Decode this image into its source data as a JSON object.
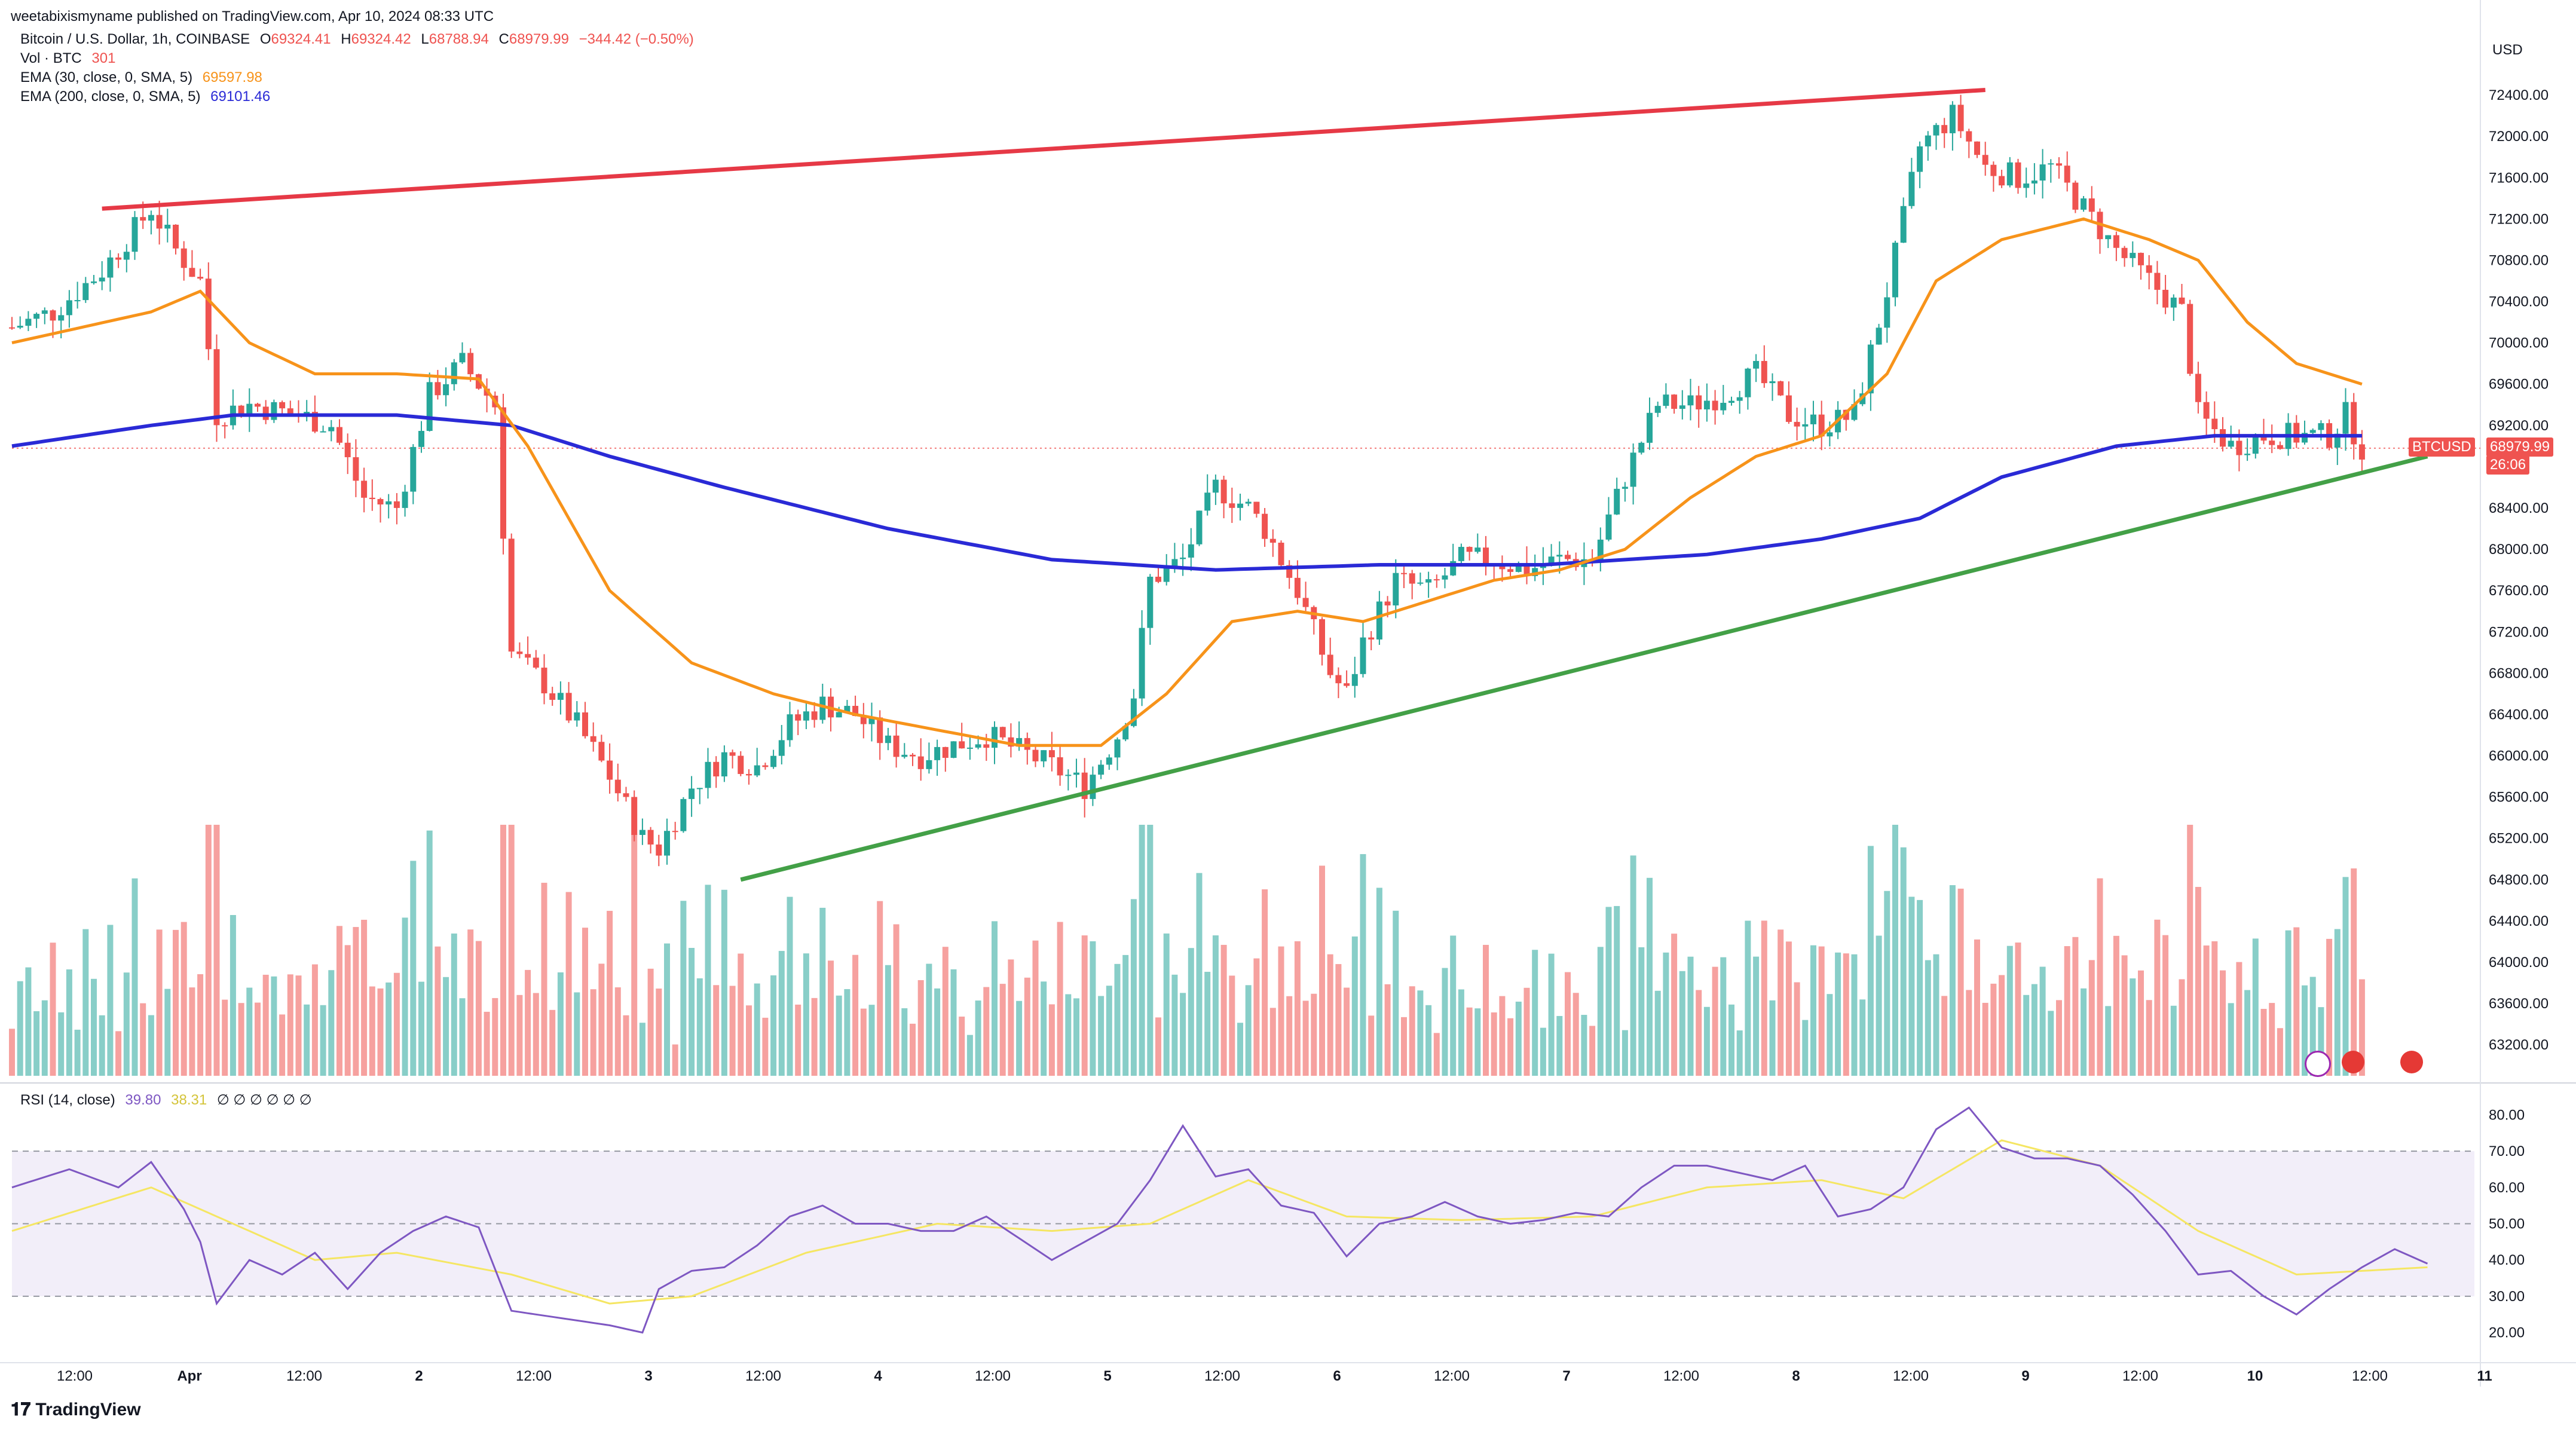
{
  "header": {
    "published_by": "weetabixismyname published on TradingView.com, Apr 10, 2024 08:33 UTC"
  },
  "legend": {
    "symbol": "Bitcoin / U.S. Dollar, 1h, COINBASE",
    "o_label": "O",
    "o_value": "69324.41",
    "h_label": "H",
    "h_value": "69324.42",
    "l_label": "L",
    "l_value": "68788.94",
    "c_label": "C",
    "c_value": "68979.99",
    "change": "−344.42 (−0.50%)",
    "vol_label": "Vol · BTC",
    "vol_value": "301",
    "ema30_label": "EMA (30, close, 0, SMA, 5)",
    "ema30_value": "69597.98",
    "ema200_label": "EMA (200, close, 0, SMA, 5)",
    "ema200_value": "69101.46",
    "rsi_label": "RSI (14, close)",
    "rsi_value": "39.80",
    "rsi_ma_value": "38.31",
    "rsi_extra": "∅ ∅ ∅ ∅ ∅ ∅"
  },
  "price_axis": {
    "currency": "USD",
    "ticks": [
      "72400.00",
      "72000.00",
      "71600.00",
      "71200.00",
      "70800.00",
      "70400.00",
      "70000.00",
      "69600.00",
      "69200.00",
      "68400.00",
      "68000.00",
      "67600.00",
      "67200.00",
      "66800.00",
      "66400.00",
      "66000.00",
      "65600.00",
      "65200.00",
      "64800.00",
      "64400.00",
      "64000.00",
      "63600.00",
      "63200.00"
    ],
    "tag_symbol": "BTCUSD",
    "tag_price": "68979.99",
    "tag_countdown": "26:06"
  },
  "rsi_axis": {
    "ticks": [
      "80.00",
      "70.00",
      "60.00",
      "50.00",
      "40.00",
      "30.00",
      "20.00"
    ]
  },
  "time_axis": {
    "labels": [
      "12:00",
      "Apr",
      "12:00",
      "2",
      "12:00",
      "3",
      "12:00",
      "4",
      "12:00",
      "5",
      "12:00",
      "6",
      "12:00",
      "7",
      "12:00",
      "8",
      "12:00",
      "9",
      "12:00",
      "10",
      "12:00",
      "11"
    ]
  },
  "colors": {
    "up": "#26a69a",
    "down": "#ef5350",
    "ema30": "#f7931a",
    "ema200": "#2a2ad6",
    "resistance": "#e63946",
    "support": "#43a047",
    "rsi_line": "#7e57c2",
    "rsi_ma": "#f5e663"
  },
  "footer": {
    "brand": "TradingView"
  },
  "chart_data": {
    "type": "candlestick",
    "symbol": "BTCUSD",
    "interval": "1h",
    "ylim": [
      62900,
      72800
    ],
    "x_range_hours": [
      -17,
      219
    ],
    "ohlc_keypoints": [
      [
        -17,
        70150
      ],
      [
        -12,
        70300
      ],
      [
        -6,
        70700
      ],
      [
        0,
        71300
      ],
      [
        3,
        70900
      ],
      [
        6,
        70600
      ],
      [
        8,
        69300
      ],
      [
        12,
        69400
      ],
      [
        18,
        69300
      ],
      [
        22,
        69200
      ],
      [
        26,
        68500
      ],
      [
        30,
        68400
      ],
      [
        34,
        69500
      ],
      [
        38,
        69800
      ],
      [
        42,
        69400
      ],
      [
        44,
        67000
      ],
      [
        48,
        66700
      ],
      [
        52,
        66300
      ],
      [
        56,
        65800
      ],
      [
        60,
        65200
      ],
      [
        62,
        65100
      ],
      [
        66,
        65700
      ],
      [
        70,
        66000
      ],
      [
        74,
        65900
      ],
      [
        78,
        66300
      ],
      [
        82,
        66500
      ],
      [
        86,
        66400
      ],
      [
        90,
        66100
      ],
      [
        94,
        66000
      ],
      [
        98,
        66100
      ],
      [
        102,
        66200
      ],
      [
        106,
        66050
      ],
      [
        110,
        65900
      ],
      [
        114,
        65700
      ],
      [
        118,
        66200
      ],
      [
        120,
        66600
      ],
      [
        122,
        67700
      ],
      [
        126,
        67900
      ],
      [
        130,
        68600
      ],
      [
        134,
        68400
      ],
      [
        136,
        68200
      ],
      [
        140,
        67600
      ],
      [
        144,
        66800
      ],
      [
        146,
        66600
      ],
      [
        148,
        67100
      ],
      [
        152,
        67700
      ],
      [
        156,
        67600
      ],
      [
        160,
        67900
      ],
      [
        164,
        67900
      ],
      [
        168,
        67800
      ],
      [
        172,
        67900
      ],
      [
        176,
        67900
      ],
      [
        180,
        68700
      ],
      [
        184,
        69400
      ],
      [
        188,
        69400
      ],
      [
        192,
        69500
      ],
      [
        196,
        69700
      ],
      [
        200,
        69300
      ],
      [
        204,
        69200
      ],
      [
        208,
        69300
      ],
      [
        212,
        70500
      ],
      [
        216,
        71900
      ],
      [
        220,
        72200
      ],
      [
        224,
        71700
      ],
      [
        228,
        71600
      ],
      [
        232,
        71700
      ],
      [
        236,
        71300
      ],
      [
        240,
        70900
      ],
      [
        244,
        70600
      ],
      [
        248,
        70300
      ],
      [
        250,
        69300
      ],
      [
        254,
        69000
      ],
      [
        258,
        69100
      ],
      [
        262,
        69100
      ],
      [
        266,
        69100
      ],
      [
        268,
        69300
      ],
      [
        270,
        68980
      ]
    ],
    "ema30_keypoints": [
      [
        -17,
        70000
      ],
      [
        0,
        70300
      ],
      [
        6,
        70500
      ],
      [
        12,
        70000
      ],
      [
        20,
        69700
      ],
      [
        30,
        69700
      ],
      [
        40,
        69650
      ],
      [
        46,
        69000
      ],
      [
        56,
        67600
      ],
      [
        66,
        66900
      ],
      [
        76,
        66600
      ],
      [
        86,
        66400
      ],
      [
        96,
        66250
      ],
      [
        106,
        66100
      ],
      [
        116,
        66100
      ],
      [
        124,
        66600
      ],
      [
        132,
        67300
      ],
      [
        140,
        67400
      ],
      [
        148,
        67300
      ],
      [
        156,
        67500
      ],
      [
        164,
        67700
      ],
      [
        172,
        67800
      ],
      [
        180,
        68000
      ],
      [
        188,
        68500
      ],
      [
        196,
        68900
      ],
      [
        204,
        69100
      ],
      [
        212,
        69700
      ],
      [
        218,
        70600
      ],
      [
        226,
        71000
      ],
      [
        236,
        71200
      ],
      [
        244,
        71000
      ],
      [
        250,
        70800
      ],
      [
        256,
        70200
      ],
      [
        262,
        69800
      ],
      [
        270,
        69600
      ]
    ],
    "ema200_keypoints": [
      [
        -17,
        69000
      ],
      [
        0,
        69200
      ],
      [
        10,
        69300
      ],
      [
        30,
        69300
      ],
      [
        44,
        69200
      ],
      [
        56,
        68900
      ],
      [
        70,
        68600
      ],
      [
        90,
        68200
      ],
      [
        110,
        67900
      ],
      [
        130,
        67800
      ],
      [
        150,
        67850
      ],
      [
        170,
        67850
      ],
      [
        190,
        67950
      ],
      [
        204,
        68100
      ],
      [
        216,
        68300
      ],
      [
        226,
        68700
      ],
      [
        240,
        69000
      ],
      [
        252,
        69100
      ],
      [
        270,
        69100
      ]
    ],
    "annotations": [
      {
        "type": "trendline",
        "name": "resistance",
        "from": [
          -6,
          71300
        ],
        "to": [
          224,
          72450
        ]
      },
      {
        "type": "trendline",
        "name": "support",
        "from": [
          72,
          64800
        ],
        "to": [
          278,
          68900
        ]
      }
    ],
    "volume_range": [
      0,
      2400
    ],
    "rsi": {
      "ylim": [
        15,
        85
      ],
      "overbought": 70,
      "middle": 50,
      "oversold": 30,
      "keypoints": [
        [
          -17,
          60
        ],
        [
          -10,
          65
        ],
        [
          -4,
          60
        ],
        [
          0,
          67
        ],
        [
          4,
          54
        ],
        [
          6,
          45
        ],
        [
          8,
          28
        ],
        [
          12,
          40
        ],
        [
          16,
          36
        ],
        [
          20,
          42
        ],
        [
          24,
          32
        ],
        [
          28,
          42
        ],
        [
          32,
          48
        ],
        [
          36,
          52
        ],
        [
          40,
          49
        ],
        [
          44,
          26
        ],
        [
          50,
          24
        ],
        [
          56,
          22
        ],
        [
          60,
          20
        ],
        [
          62,
          32
        ],
        [
          66,
          37
        ],
        [
          70,
          38
        ],
        [
          74,
          44
        ],
        [
          78,
          52
        ],
        [
          82,
          55
        ],
        [
          86,
          50
        ],
        [
          90,
          50
        ],
        [
          94,
          48
        ],
        [
          98,
          48
        ],
        [
          102,
          52
        ],
        [
          106,
          46
        ],
        [
          110,
          40
        ],
        [
          114,
          45
        ],
        [
          118,
          50
        ],
        [
          122,
          62
        ],
        [
          126,
          77
        ],
        [
          130,
          63
        ],
        [
          134,
          65
        ],
        [
          138,
          55
        ],
        [
          142,
          53
        ],
        [
          146,
          41
        ],
        [
          150,
          50
        ],
        [
          154,
          52
        ],
        [
          158,
          56
        ],
        [
          162,
          52
        ],
        [
          166,
          50
        ],
        [
          170,
          51
        ],
        [
          174,
          53
        ],
        [
          178,
          52
        ],
        [
          182,
          60
        ],
        [
          186,
          66
        ],
        [
          190,
          66
        ],
        [
          194,
          64
        ],
        [
          198,
          62
        ],
        [
          202,
          66
        ],
        [
          206,
          52
        ],
        [
          210,
          54
        ],
        [
          214,
          60
        ],
        [
          218,
          76
        ],
        [
          222,
          82
        ],
        [
          226,
          71
        ],
        [
          230,
          68
        ],
        [
          234,
          68
        ],
        [
          238,
          66
        ],
        [
          242,
          58
        ],
        [
          246,
          48
        ],
        [
          250,
          36
        ],
        [
          254,
          37
        ],
        [
          258,
          30
        ],
        [
          262,
          25
        ],
        [
          266,
          32
        ],
        [
          270,
          38
        ],
        [
          274,
          43
        ],
        [
          278,
          39
        ]
      ],
      "ma_keypoints": [
        [
          -17,
          48
        ],
        [
          0,
          60
        ],
        [
          8,
          52
        ],
        [
          20,
          40
        ],
        [
          30,
          42
        ],
        [
          44,
          36
        ],
        [
          56,
          28
        ],
        [
          66,
          30
        ],
        [
          80,
          42
        ],
        [
          96,
          50
        ],
        [
          110,
          48
        ],
        [
          122,
          50
        ],
        [
          134,
          62
        ],
        [
          146,
          52
        ],
        [
          160,
          51
        ],
        [
          176,
          52
        ],
        [
          190,
          60
        ],
        [
          204,
          62
        ],
        [
          214,
          57
        ],
        [
          226,
          73
        ],
        [
          238,
          66
        ],
        [
          250,
          48
        ],
        [
          262,
          36
        ],
        [
          278,
          38
        ]
      ]
    }
  }
}
